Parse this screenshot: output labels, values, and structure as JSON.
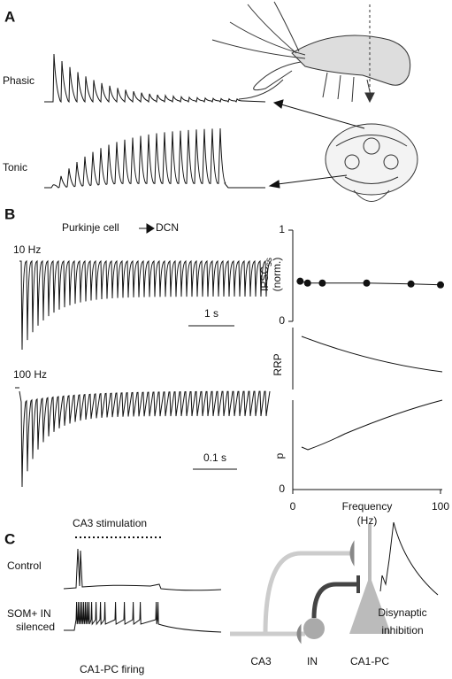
{
  "panel_a": {
    "label": "A",
    "phasic": "Phasic",
    "tonic": "Tonic"
  },
  "panel_b": {
    "label": "B",
    "connection_from": "Purkinje cell",
    "connection_to": "DCN",
    "trace_1_label": "10 Hz",
    "trace_1_scale": "1 s",
    "trace_2_label": "100 Hz",
    "trace_2_scale": "0.1 s",
    "rrp_label": "RRP",
    "p_label": "p",
    "p_yticks": [
      0
    ]
  },
  "chart_data": {
    "type": "line",
    "y_label": "IPSC",
    "y_label_sub": "ss",
    "y_label_2": "(norm.)",
    "x": [
      5,
      10,
      20,
      50,
      80,
      100
    ],
    "values": [
      0.44,
      0.42,
      0.42,
      0.42,
      0.41,
      0.4
    ],
    "xlim": [
      0,
      100
    ],
    "xticks": [
      0,
      100
    ],
    "ylim": [
      0,
      1
    ],
    "yticks": [
      0,
      1
    ],
    "x_label": "Frequency",
    "x_label_2": "(Hz)",
    "color": "#111"
  },
  "panel_c": {
    "label": "C",
    "stimulation": "CA3 stimulation",
    "control": "Control",
    "silenced_1": "SOM+ IN",
    "silenced_2": "silenced",
    "firing": "CA1-PC firing",
    "inset_1": "Disynaptic",
    "inset_2": "inhibition",
    "ca3": "CA3",
    "in": "IN",
    "ca1": "CA1-PC"
  }
}
